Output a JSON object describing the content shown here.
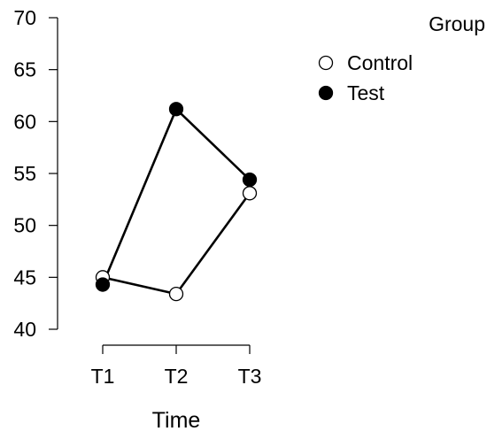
{
  "chart_data": {
    "type": "line",
    "xlabel": "Time",
    "ylabel": "",
    "categories": [
      "T1",
      "T2",
      "T3"
    ],
    "ylim": [
      40,
      70
    ],
    "yticks": [
      40,
      45,
      50,
      55,
      60,
      65,
      70
    ],
    "grid": false,
    "legend": {
      "title": "Group",
      "placement": "top-right"
    },
    "series": [
      {
        "name": "Control",
        "marker": "open-circle",
        "color": "#000000",
        "fill": "#ffffff",
        "values": [
          45.0,
          43.4,
          53.1
        ]
      },
      {
        "name": "Test",
        "marker": "filled-circle",
        "color": "#000000",
        "fill": "#000000",
        "values": [
          44.3,
          61.2,
          54.4
        ]
      }
    ]
  }
}
